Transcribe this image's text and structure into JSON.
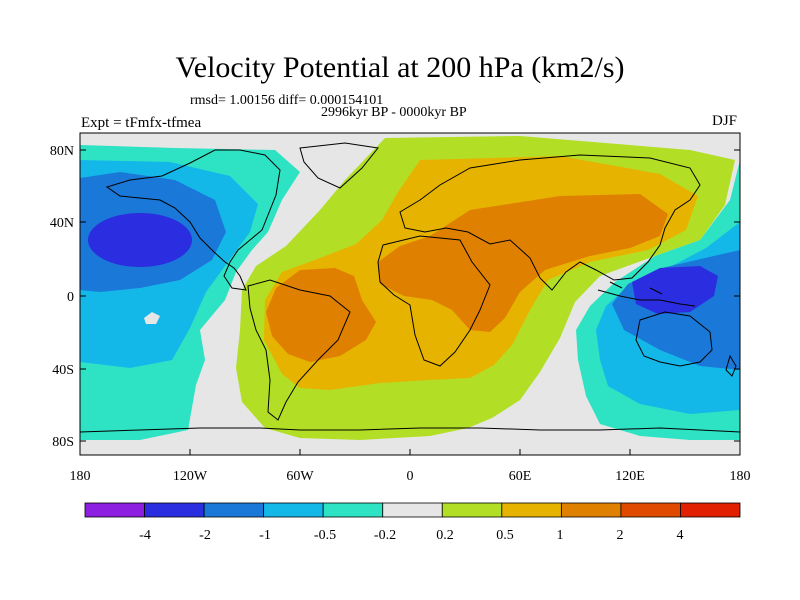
{
  "plot": {
    "title": "Velocity Potential at 200 hPa (km2/s)",
    "stats": "rmsd= 1.00156 diff= 0.000154101",
    "period": "2996kyr BP - 0000kyr BP",
    "experiment": "Expt = tFmfx-tfmea",
    "season": "DJF"
  },
  "axes": {
    "lon_ticks": [
      "180",
      "120W",
      "60W",
      "0",
      "60E",
      "120E",
      "180"
    ],
    "lat_ticks": [
      "80N",
      "40N",
      "0",
      "40S",
      "80S"
    ]
  },
  "colorbar": {
    "colors": [
      "#8c1fe0",
      "#2b2ee0",
      "#1a78d8",
      "#14b8e8",
      "#2ee2c4",
      "#e6e6e6",
      "#b2df26",
      "#e6b400",
      "#e08000",
      "#e04a00",
      "#e02000"
    ],
    "labels": [
      "-4",
      "-2",
      "-1",
      "-0.5",
      "-0.2",
      "0.2",
      "0.5",
      "1",
      "2",
      "4"
    ]
  },
  "field_colors": {
    "background": "#e6e6e6",
    "pos_weak": "#b2df26",
    "pos_mid": "#e6b400",
    "pos_strong": "#e08000",
    "neg_weak": "#2ee2c4",
    "neg_mid": "#14b8e8",
    "neg_strong": "#1a78d8",
    "neg_core": "#2b2ee0",
    "coast": "#000000"
  }
}
